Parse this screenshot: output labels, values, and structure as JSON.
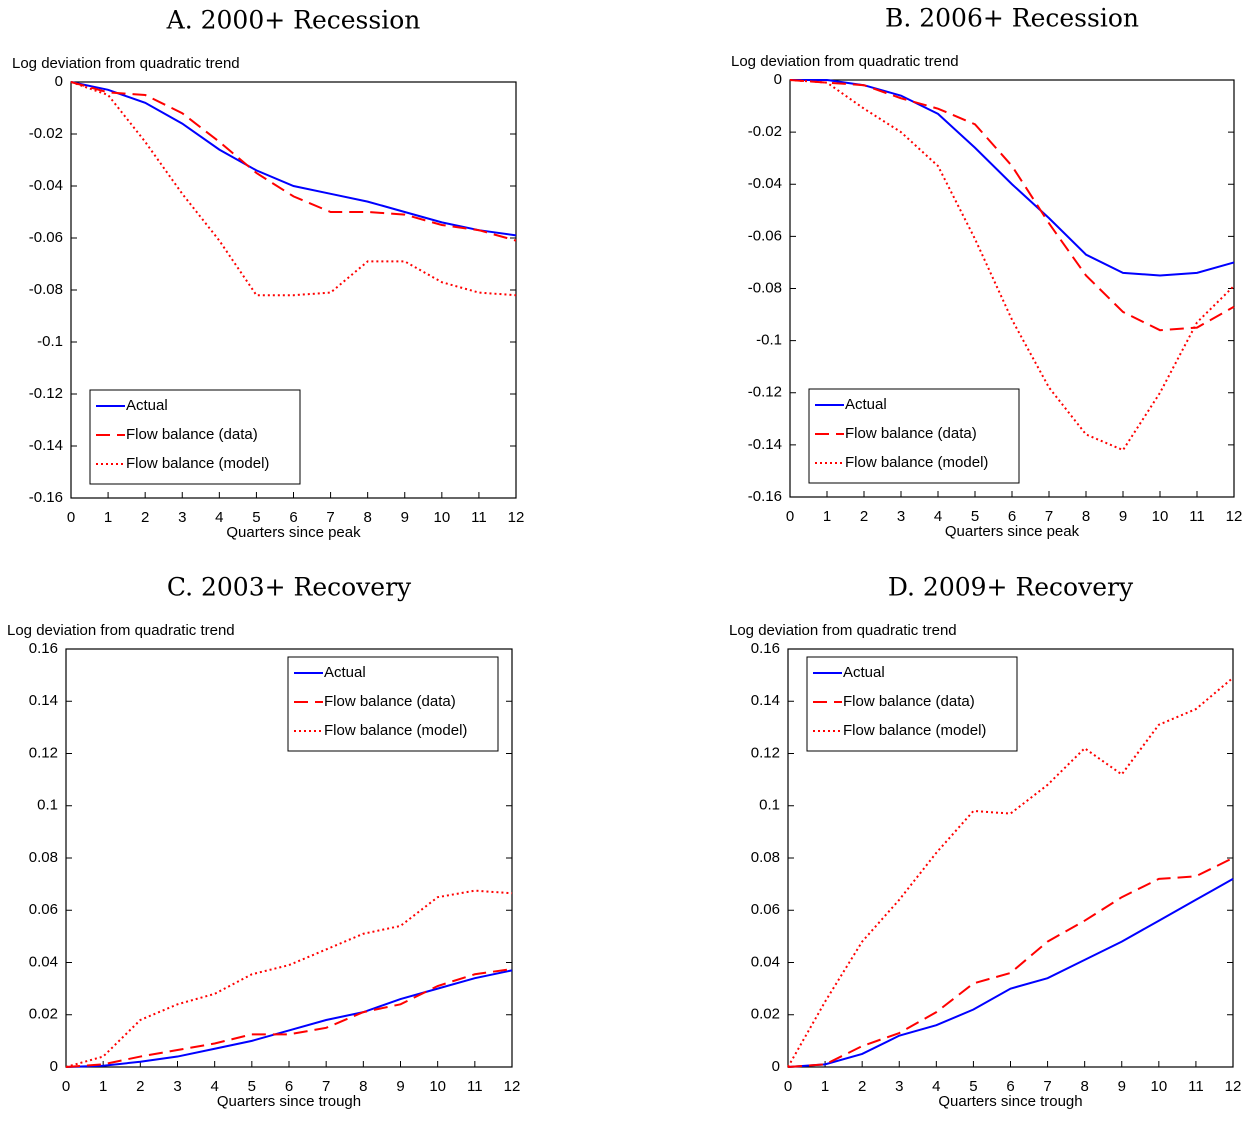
{
  "chart_data": [
    {
      "type": "line",
      "title": "A. 2000+ Recession",
      "y_label": "Log deviation from quadratic trend",
      "x_label": "Quarters since peak",
      "x": [
        0,
        1,
        2,
        3,
        4,
        5,
        6,
        7,
        8,
        9,
        10,
        11,
        12
      ],
      "xlim": [
        0,
        12
      ],
      "xticks": [
        0,
        1,
        2,
        3,
        4,
        5,
        6,
        7,
        8,
        9,
        10,
        11,
        12
      ],
      "ylim": [
        -0.16,
        0
      ],
      "yticks": [
        0,
        -0.02,
        -0.04,
        -0.06,
        -0.08,
        -0.1,
        -0.12,
        -0.14,
        -0.16
      ],
      "legend": "lower left",
      "series": [
        {
          "name": "Actual",
          "color": "#0000ff",
          "dash": "solid",
          "values": [
            0,
            -0.003,
            -0.008,
            -0.016,
            -0.026,
            -0.034,
            -0.04,
            -0.043,
            -0.046,
            -0.05,
            -0.054,
            -0.057,
            -0.059
          ]
        },
        {
          "name": "Flow balance (data)",
          "color": "#ff0000",
          "dash": "dashed",
          "values": [
            0,
            -0.004,
            -0.005,
            -0.012,
            -0.023,
            -0.035,
            -0.044,
            -0.05,
            -0.05,
            -0.051,
            -0.055,
            -0.057,
            -0.061
          ]
        },
        {
          "name": "Flow balance (model)",
          "color": "#ff0000",
          "dash": "dotted",
          "values": [
            0,
            -0.005,
            -0.023,
            -0.043,
            -0.061,
            -0.082,
            -0.082,
            -0.081,
            -0.069,
            -0.069,
            -0.077,
            -0.081,
            -0.082
          ]
        }
      ]
    },
    {
      "type": "line",
      "title": "B. 2006+ Recession",
      "y_label": "Log deviation from quadratic trend",
      "x_label": "Quarters since peak",
      "x": [
        0,
        1,
        2,
        3,
        4,
        5,
        6,
        7,
        8,
        9,
        10,
        11,
        12
      ],
      "xlim": [
        0,
        12
      ],
      "xticks": [
        0,
        1,
        2,
        3,
        4,
        5,
        6,
        7,
        8,
        9,
        10,
        11,
        12
      ],
      "ylim": [
        -0.16,
        0
      ],
      "yticks": [
        0,
        -0.02,
        -0.04,
        -0.06,
        -0.08,
        -0.1,
        -0.12,
        -0.14,
        -0.16
      ],
      "legend": "lower left",
      "series": [
        {
          "name": "Actual",
          "color": "#0000ff",
          "dash": "solid",
          "values": [
            0,
            0,
            -0.002,
            -0.006,
            -0.013,
            -0.026,
            -0.04,
            -0.053,
            -0.067,
            -0.074,
            -0.075,
            -0.074,
            -0.07
          ]
        },
        {
          "name": "Flow balance (data)",
          "color": "#ff0000",
          "dash": "dashed",
          "values": [
            0,
            -0.001,
            -0.002,
            -0.007,
            -0.011,
            -0.017,
            -0.033,
            -0.055,
            -0.075,
            -0.089,
            -0.096,
            -0.095,
            -0.087
          ]
        },
        {
          "name": "Flow balance (model)",
          "color": "#ff0000",
          "dash": "dotted",
          "values": [
            0,
            -0.001,
            -0.011,
            -0.02,
            -0.033,
            -0.061,
            -0.092,
            -0.118,
            -0.136,
            -0.142,
            -0.12,
            -0.093,
            -0.079
          ]
        }
      ]
    },
    {
      "type": "line",
      "title": "C. 2003+ Recovery",
      "y_label": "Log deviation from quadratic trend",
      "x_label": "Quarters since trough",
      "x": [
        0,
        1,
        2,
        3,
        4,
        5,
        6,
        7,
        8,
        9,
        10,
        11,
        12
      ],
      "xlim": [
        0,
        12
      ],
      "xticks": [
        0,
        1,
        2,
        3,
        4,
        5,
        6,
        7,
        8,
        9,
        10,
        11,
        12
      ],
      "ylim": [
        0,
        0.16
      ],
      "yticks": [
        0,
        0.02,
        0.04,
        0.06,
        0.08,
        0.1,
        0.12,
        0.14,
        0.16
      ],
      "legend": "upper right",
      "series": [
        {
          "name": "Actual",
          "color": "#0000ff",
          "dash": "solid",
          "values": [
            0,
            0.0005,
            0.002,
            0.004,
            0.007,
            0.01,
            0.014,
            0.018,
            0.021,
            0.026,
            0.03,
            0.034,
            0.037
          ]
        },
        {
          "name": "Flow balance (data)",
          "color": "#ff0000",
          "dash": "dashed",
          "values": [
            0,
            0.001,
            0.004,
            0.0065,
            0.009,
            0.0125,
            0.0125,
            0.015,
            0.021,
            0.024,
            0.031,
            0.0355,
            0.0375
          ]
        },
        {
          "name": "Flow balance (model)",
          "color": "#ff0000",
          "dash": "dotted",
          "values": [
            0,
            0.004,
            0.018,
            0.024,
            0.028,
            0.0355,
            0.039,
            0.045,
            0.051,
            0.054,
            0.065,
            0.0675,
            0.0665
          ]
        }
      ]
    },
    {
      "type": "line",
      "title": "D. 2009+ Recovery",
      "y_label": "Log deviation from quadratic trend",
      "x_label": "Quarters since trough",
      "x": [
        0,
        1,
        2,
        3,
        4,
        5,
        6,
        7,
        8,
        9,
        10,
        11,
        12
      ],
      "xlim": [
        0,
        12
      ],
      "xticks": [
        0,
        1,
        2,
        3,
        4,
        5,
        6,
        7,
        8,
        9,
        10,
        11,
        12
      ],
      "ylim": [
        0,
        0.16
      ],
      "yticks": [
        0,
        0.02,
        0.04,
        0.06,
        0.08,
        0.1,
        0.12,
        0.14,
        0.16
      ],
      "legend": "upper left",
      "series": [
        {
          "name": "Actual",
          "color": "#0000ff",
          "dash": "solid",
          "values": [
            0,
            0.001,
            0.005,
            0.012,
            0.016,
            0.022,
            0.03,
            0.034,
            0.041,
            0.048,
            0.056,
            0.064,
            0.072
          ]
        },
        {
          "name": "Flow balance (data)",
          "color": "#ff0000",
          "dash": "dashed",
          "values": [
            0,
            0.001,
            0.008,
            0.013,
            0.021,
            0.032,
            0.036,
            0.048,
            0.056,
            0.065,
            0.072,
            0.073,
            0.08
          ]
        },
        {
          "name": "Flow balance (model)",
          "color": "#ff0000",
          "dash": "dotted",
          "values": [
            0,
            0.025,
            0.048,
            0.064,
            0.082,
            0.098,
            0.097,
            0.108,
            0.122,
            0.112,
            0.131,
            0.137,
            0.149
          ]
        }
      ]
    }
  ]
}
